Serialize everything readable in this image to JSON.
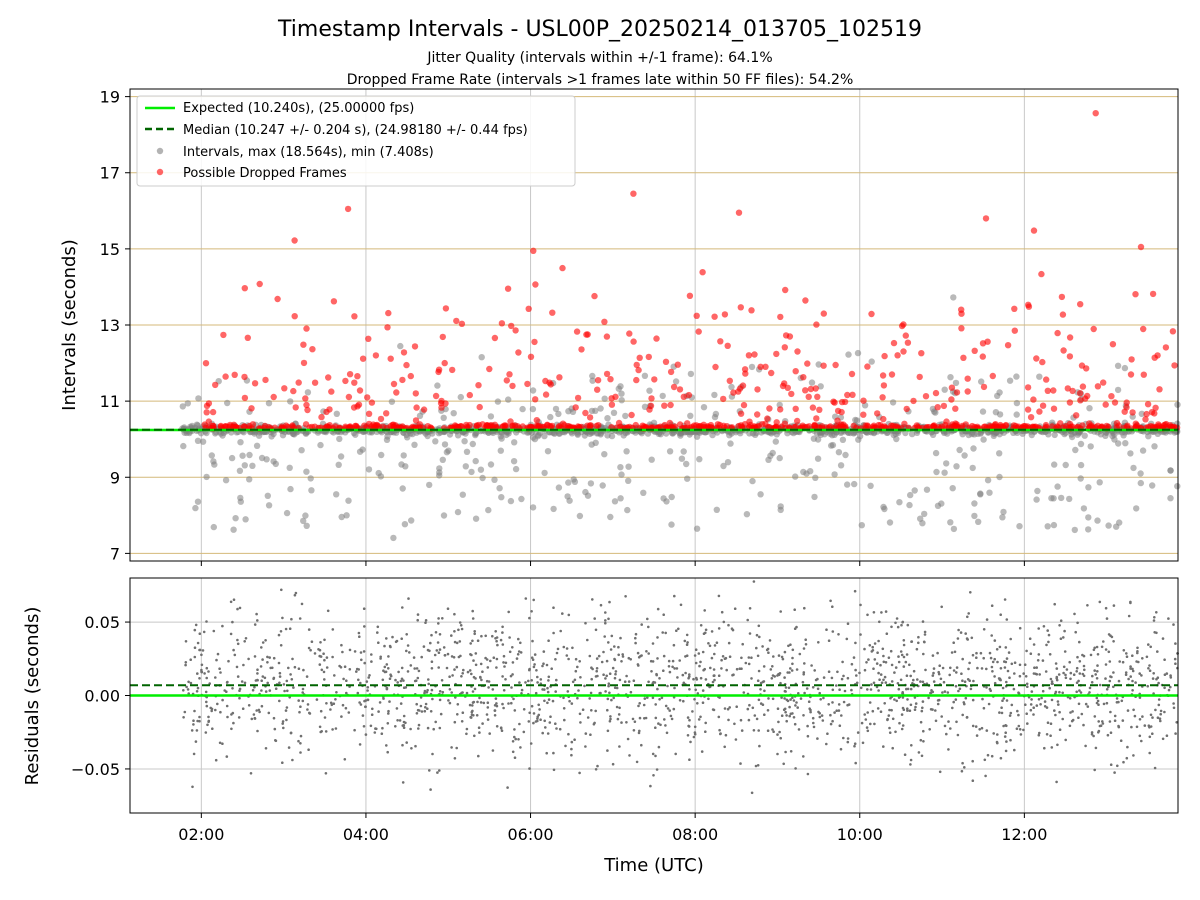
{
  "figure": {
    "title": "Timestamp Intervals - USL00P_20250214_013705_102519",
    "subtitle_1": "Jitter Quality (intervals within +/-1 frame): 64.1%",
    "subtitle_2": "Dropped Frame Rate (intervals >1 frames late within 50 FF files): 54.2%"
  },
  "colors": {
    "expected": "#00ee00",
    "median": "#006400",
    "intervals": "#808080",
    "dropped": "#ff0000",
    "hgrid_top": "#d4b97a",
    "grid": "#c8c8c8"
  },
  "chart_data": [
    {
      "type": "scatter",
      "xlabel": "",
      "ylabel": "Intervals (seconds)",
      "xlim": [
        "01:08",
        "13:52"
      ],
      "ylim": [
        6.8,
        19.2
      ],
      "yticks": [
        "7",
        "9",
        "11",
        "13",
        "15",
        "17",
        "19"
      ],
      "grid": true,
      "legend_placement": "upper-left",
      "legend": [
        {
          "label": "Expected (10.240s), (25.00000 fps)",
          "style": "solid-line"
        },
        {
          "label": "Median (10.247 +/- 0.204 s), (24.98180 +/- 0.44 fps)",
          "style": "dashed-line"
        },
        {
          "label": "Intervals, max (18.564s), min (7.408s)",
          "style": "gray-dot"
        },
        {
          "label": "Possible Dropped Frames",
          "style": "red-dot"
        }
      ],
      "expected_value": 10.24,
      "median_value": 10.247,
      "time_range": [
        "01:46",
        "13:52"
      ],
      "series": [
        {
          "name": "Intervals, max (18.564s), min (7.408s)",
          "approx_count": 1400,
          "max": 18.564,
          "min": 7.408,
          "center": 10.24,
          "note_points": []
        },
        {
          "name": "Possible Dropped Frames",
          "approx_count": 700,
          "min_threshold": 10.28
        }
      ],
      "highlighted_points": [
        {
          "x": "12:52",
          "y": 18.564
        },
        {
          "x": "04:20",
          "y": 7.408
        },
        {
          "x": "03:47",
          "y": 16.05
        },
        {
          "x": "07:15",
          "y": 16.45
        },
        {
          "x": "08:32",
          "y": 15.95
        },
        {
          "x": "11:32",
          "y": 15.8
        },
        {
          "x": "12:07",
          "y": 15.48
        },
        {
          "x": "03:08",
          "y": 15.22
        },
        {
          "x": "06:02",
          "y": 14.95
        },
        {
          "x": "13:25",
          "y": 15.05
        }
      ]
    },
    {
      "type": "scatter",
      "xlabel": "Time (UTC)",
      "ylabel": "Residuals (seconds)",
      "xlim": [
        "01:08",
        "13:52"
      ],
      "ylim": [
        -0.08,
        0.08
      ],
      "yticks": [
        "−0.05",
        "0.00",
        "0.05"
      ],
      "xticks": [
        "02:00",
        "04:00",
        "06:00",
        "08:00",
        "10:00",
        "12:00"
      ],
      "grid": true,
      "expected_value": 0.0,
      "median_value": 0.007,
      "series": [
        {
          "name": "Residuals",
          "approx_count": 2000,
          "spread": 0.025
        }
      ]
    }
  ]
}
